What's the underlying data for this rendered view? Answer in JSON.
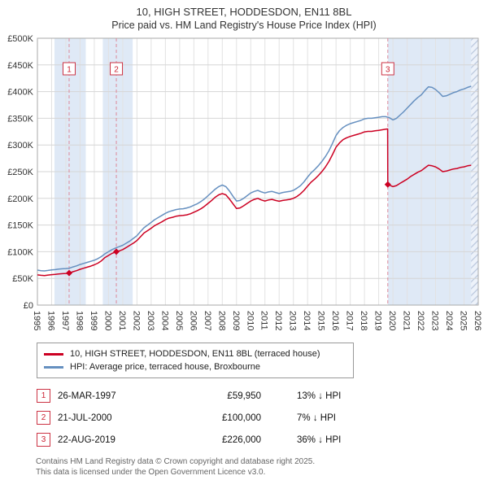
{
  "chart_data": {
    "type": "line",
    "title": "10, HIGH STREET, HODDESDON, EN11 8BL",
    "subtitle": "Price paid vs. HM Land Registry's House Price Index (HPI)",
    "xlabel": "",
    "ylabel": "",
    "xlim": [
      1995,
      2026
    ],
    "ylim": [
      0,
      500000
    ],
    "y_tick_step": 50000,
    "y_tick_labels": [
      "£0",
      "£50K",
      "£100K",
      "£150K",
      "£200K",
      "£250K",
      "£300K",
      "£350K",
      "£400K",
      "£450K",
      "£500K"
    ],
    "grid": true,
    "legend_position": "bottom",
    "band_color": "#dfe9f6",
    "sale_line_color": "#dd8899",
    "bands": [
      {
        "from": 1996.2,
        "to": 1998.4
      },
      {
        "from": 1999.6,
        "to": 2001.7
      },
      {
        "from": 2019.64,
        "to": 2026
      }
    ],
    "hatch_from": 2025.5,
    "sale_markers": [
      {
        "label": "1",
        "x": 1997.23,
        "y": 59950
      },
      {
        "label": "2",
        "x": 2000.55,
        "y": 100000
      },
      {
        "label": "3",
        "x": 2019.64,
        "y": 226000
      }
    ],
    "series": [
      {
        "name": "10, HIGH STREET, HODDESDON, EN11 8BL (terraced house)",
        "color": "#cc0022",
        "points": [
          [
            1995.0,
            56500
          ],
          [
            1995.25,
            55800
          ],
          [
            1995.5,
            55300
          ],
          [
            1995.75,
            56200
          ],
          [
            1996.0,
            57000
          ],
          [
            1996.25,
            57500
          ],
          [
            1996.5,
            58200
          ],
          [
            1996.75,
            58800
          ],
          [
            1997.0,
            59300
          ],
          [
            1997.23,
            59950
          ],
          [
            1997.5,
            62500
          ],
          [
            1997.75,
            64500
          ],
          [
            1998.0,
            67000
          ],
          [
            1998.25,
            69000
          ],
          [
            1998.5,
            71000
          ],
          [
            1998.75,
            73000
          ],
          [
            1999.0,
            75500
          ],
          [
            1999.25,
            78500
          ],
          [
            1999.5,
            83000
          ],
          [
            1999.75,
            89000
          ],
          [
            2000.0,
            93000
          ],
          [
            2000.25,
            97000
          ],
          [
            2000.55,
            100000
          ],
          [
            2000.75,
            101500
          ],
          [
            2001.0,
            104000
          ],
          [
            2001.25,
            108000
          ],
          [
            2001.5,
            112000
          ],
          [
            2001.75,
            116000
          ],
          [
            2002.0,
            121000
          ],
          [
            2002.25,
            128000
          ],
          [
            2002.5,
            135000
          ],
          [
            2002.75,
            139500
          ],
          [
            2003.0,
            144000
          ],
          [
            2003.25,
            149000
          ],
          [
            2003.5,
            152500
          ],
          [
            2003.75,
            156000
          ],
          [
            2004.0,
            160000
          ],
          [
            2004.25,
            163000
          ],
          [
            2004.5,
            164500
          ],
          [
            2004.75,
            166500
          ],
          [
            2005.0,
            167500
          ],
          [
            2005.25,
            168000
          ],
          [
            2005.5,
            169000
          ],
          [
            2005.75,
            171000
          ],
          [
            2006.0,
            174000
          ],
          [
            2006.25,
            177000
          ],
          [
            2006.5,
            180500
          ],
          [
            2006.75,
            185000
          ],
          [
            2007.0,
            190500
          ],
          [
            2007.25,
            196000
          ],
          [
            2007.5,
            202000
          ],
          [
            2007.75,
            206500
          ],
          [
            2008.0,
            209000
          ],
          [
            2008.25,
            206500
          ],
          [
            2008.5,
            199000
          ],
          [
            2008.75,
            190000
          ],
          [
            2009.0,
            181000
          ],
          [
            2009.25,
            182000
          ],
          [
            2009.5,
            186000
          ],
          [
            2009.75,
            190500
          ],
          [
            2010.0,
            195000
          ],
          [
            2010.25,
            198000
          ],
          [
            2010.5,
            200000
          ],
          [
            2010.75,
            197000
          ],
          [
            2011.0,
            195000
          ],
          [
            2011.25,
            197000
          ],
          [
            2011.5,
            198000
          ],
          [
            2011.75,
            196000
          ],
          [
            2012.0,
            194500
          ],
          [
            2012.25,
            196000
          ],
          [
            2012.5,
            197000
          ],
          [
            2012.75,
            198000
          ],
          [
            2013.0,
            200000
          ],
          [
            2013.25,
            203500
          ],
          [
            2013.5,
            208500
          ],
          [
            2013.75,
            215000
          ],
          [
            2014.0,
            223000
          ],
          [
            2014.25,
            230500
          ],
          [
            2014.5,
            236000
          ],
          [
            2014.75,
            242500
          ],
          [
            2015.0,
            250000
          ],
          [
            2015.25,
            258500
          ],
          [
            2015.5,
            269000
          ],
          [
            2015.75,
            282000
          ],
          [
            2016.0,
            296000
          ],
          [
            2016.25,
            304000
          ],
          [
            2016.5,
            310000
          ],
          [
            2016.75,
            313500
          ],
          [
            2017.0,
            316000
          ],
          [
            2017.25,
            318000
          ],
          [
            2017.5,
            320000
          ],
          [
            2017.75,
            322000
          ],
          [
            2018.0,
            324500
          ],
          [
            2018.25,
            325500
          ],
          [
            2018.5,
            325500
          ],
          [
            2018.75,
            326500
          ],
          [
            2019.0,
            327500
          ],
          [
            2019.25,
            328500
          ],
          [
            2019.5,
            329500
          ],
          [
            2019.63,
            330000
          ],
          [
            2019.64,
            226000
          ],
          [
            2019.75,
            225000
          ],
          [
            2020.0,
            222000
          ],
          [
            2020.25,
            224000
          ],
          [
            2020.5,
            228000
          ],
          [
            2020.75,
            232000
          ],
          [
            2021.0,
            236000
          ],
          [
            2021.25,
            241000
          ],
          [
            2021.5,
            245000
          ],
          [
            2021.75,
            249000
          ],
          [
            2022.0,
            252000
          ],
          [
            2022.25,
            257000
          ],
          [
            2022.5,
            262000
          ],
          [
            2022.75,
            261000
          ],
          [
            2023.0,
            259000
          ],
          [
            2023.25,
            255000
          ],
          [
            2023.5,
            250000
          ],
          [
            2023.75,
            251000
          ],
          [
            2024.0,
            253000
          ],
          [
            2024.25,
            255000
          ],
          [
            2024.5,
            256000
          ],
          [
            2024.75,
            258000
          ],
          [
            2025.0,
            259000
          ],
          [
            2025.25,
            261000
          ],
          [
            2025.5,
            262000
          ]
        ]
      },
      {
        "name": "HPI: Average price, terraced house, Broxbourne",
        "color": "#6690c0",
        "points": [
          [
            1995.0,
            65500
          ],
          [
            1995.25,
            64500
          ],
          [
            1995.5,
            64000
          ],
          [
            1995.75,
            65000
          ],
          [
            1996.0,
            66000
          ],
          [
            1996.25,
            66500
          ],
          [
            1996.5,
            67500
          ],
          [
            1996.75,
            68000
          ],
          [
            1997.0,
            68500
          ],
          [
            1997.25,
            69000
          ],
          [
            1997.5,
            71500
          ],
          [
            1997.75,
            73500
          ],
          [
            1998.0,
            76000
          ],
          [
            1998.25,
            78000
          ],
          [
            1998.5,
            80000
          ],
          [
            1998.75,
            82000
          ],
          [
            1999.0,
            84000
          ],
          [
            1999.25,
            87000
          ],
          [
            1999.5,
            91000
          ],
          [
            1999.75,
            96000
          ],
          [
            2000.0,
            100000
          ],
          [
            2000.25,
            104000
          ],
          [
            2000.5,
            107000
          ],
          [
            2000.75,
            109500
          ],
          [
            2001.0,
            112000
          ],
          [
            2001.25,
            116000
          ],
          [
            2001.5,
            120000
          ],
          [
            2001.75,
            125000
          ],
          [
            2002.0,
            130000
          ],
          [
            2002.25,
            138000
          ],
          [
            2002.5,
            145000
          ],
          [
            2002.75,
            150000
          ],
          [
            2003.0,
            155000
          ],
          [
            2003.25,
            160000
          ],
          [
            2003.5,
            164000
          ],
          [
            2003.75,
            168000
          ],
          [
            2004.0,
            172000
          ],
          [
            2004.25,
            175000
          ],
          [
            2004.5,
            177000
          ],
          [
            2004.75,
            179000
          ],
          [
            2005.0,
            180000
          ],
          [
            2005.25,
            180500
          ],
          [
            2005.5,
            182000
          ],
          [
            2005.75,
            184000
          ],
          [
            2006.0,
            187000
          ],
          [
            2006.25,
            190000
          ],
          [
            2006.5,
            194000
          ],
          [
            2006.75,
            199000
          ],
          [
            2007.0,
            205000
          ],
          [
            2007.25,
            211000
          ],
          [
            2007.5,
            217000
          ],
          [
            2007.75,
            222000
          ],
          [
            2008.0,
            225000
          ],
          [
            2008.25,
            222000
          ],
          [
            2008.5,
            214000
          ],
          [
            2008.75,
            204000
          ],
          [
            2009.0,
            195000
          ],
          [
            2009.25,
            196000
          ],
          [
            2009.5,
            200000
          ],
          [
            2009.75,
            205000
          ],
          [
            2010.0,
            210000
          ],
          [
            2010.25,
            213000
          ],
          [
            2010.5,
            215000
          ],
          [
            2010.75,
            212000
          ],
          [
            2011.0,
            210000
          ],
          [
            2011.25,
            212000
          ],
          [
            2011.5,
            213000
          ],
          [
            2011.75,
            211000
          ],
          [
            2012.0,
            209000
          ],
          [
            2012.25,
            211000
          ],
          [
            2012.5,
            212000
          ],
          [
            2012.75,
            213000
          ],
          [
            2013.0,
            215000
          ],
          [
            2013.25,
            219000
          ],
          [
            2013.5,
            224000
          ],
          [
            2013.75,
            231000
          ],
          [
            2014.0,
            240000
          ],
          [
            2014.25,
            248000
          ],
          [
            2014.5,
            254000
          ],
          [
            2014.75,
            261000
          ],
          [
            2015.0,
            269000
          ],
          [
            2015.25,
            278000
          ],
          [
            2015.5,
            289000
          ],
          [
            2015.75,
            303000
          ],
          [
            2016.0,
            318000
          ],
          [
            2016.25,
            327000
          ],
          [
            2016.5,
            333000
          ],
          [
            2016.75,
            337000
          ],
          [
            2017.0,
            340000
          ],
          [
            2017.25,
            342000
          ],
          [
            2017.5,
            344000
          ],
          [
            2017.75,
            346000
          ],
          [
            2018.0,
            349000
          ],
          [
            2018.25,
            350000
          ],
          [
            2018.5,
            350000
          ],
          [
            2018.75,
            351000
          ],
          [
            2019.0,
            352000
          ],
          [
            2019.25,
            353000
          ],
          [
            2019.5,
            353000
          ],
          [
            2019.75,
            351000
          ],
          [
            2020.0,
            347000
          ],
          [
            2020.25,
            350000
          ],
          [
            2020.5,
            356000
          ],
          [
            2020.75,
            362000
          ],
          [
            2021.0,
            369000
          ],
          [
            2021.25,
            376000
          ],
          [
            2021.5,
            383000
          ],
          [
            2021.75,
            389000
          ],
          [
            2022.0,
            394000
          ],
          [
            2022.25,
            402000
          ],
          [
            2022.5,
            409000
          ],
          [
            2022.75,
            408000
          ],
          [
            2023.0,
            404000
          ],
          [
            2023.25,
            398000
          ],
          [
            2023.5,
            391000
          ],
          [
            2023.75,
            392000
          ],
          [
            2024.0,
            395000
          ],
          [
            2024.25,
            398000
          ],
          [
            2024.5,
            400000
          ],
          [
            2024.75,
            403000
          ],
          [
            2025.0,
            405000
          ],
          [
            2025.25,
            408000
          ],
          [
            2025.5,
            410000
          ]
        ]
      }
    ]
  },
  "sales": [
    {
      "num": "1",
      "date": "26-MAR-1997",
      "price": "£59,950",
      "vs_hpi": "13% ↓ HPI"
    },
    {
      "num": "2",
      "date": "21-JUL-2000",
      "price": "£100,000",
      "vs_hpi": "7% ↓ HPI"
    },
    {
      "num": "3",
      "date": "22-AUG-2019",
      "price": "£226,000",
      "vs_hpi": "36% ↓ HPI"
    }
  ],
  "footer": {
    "line1": "Contains HM Land Registry data © Crown copyright and database right 2025.",
    "line2": "This data is licensed under the Open Government Licence v3.0."
  }
}
